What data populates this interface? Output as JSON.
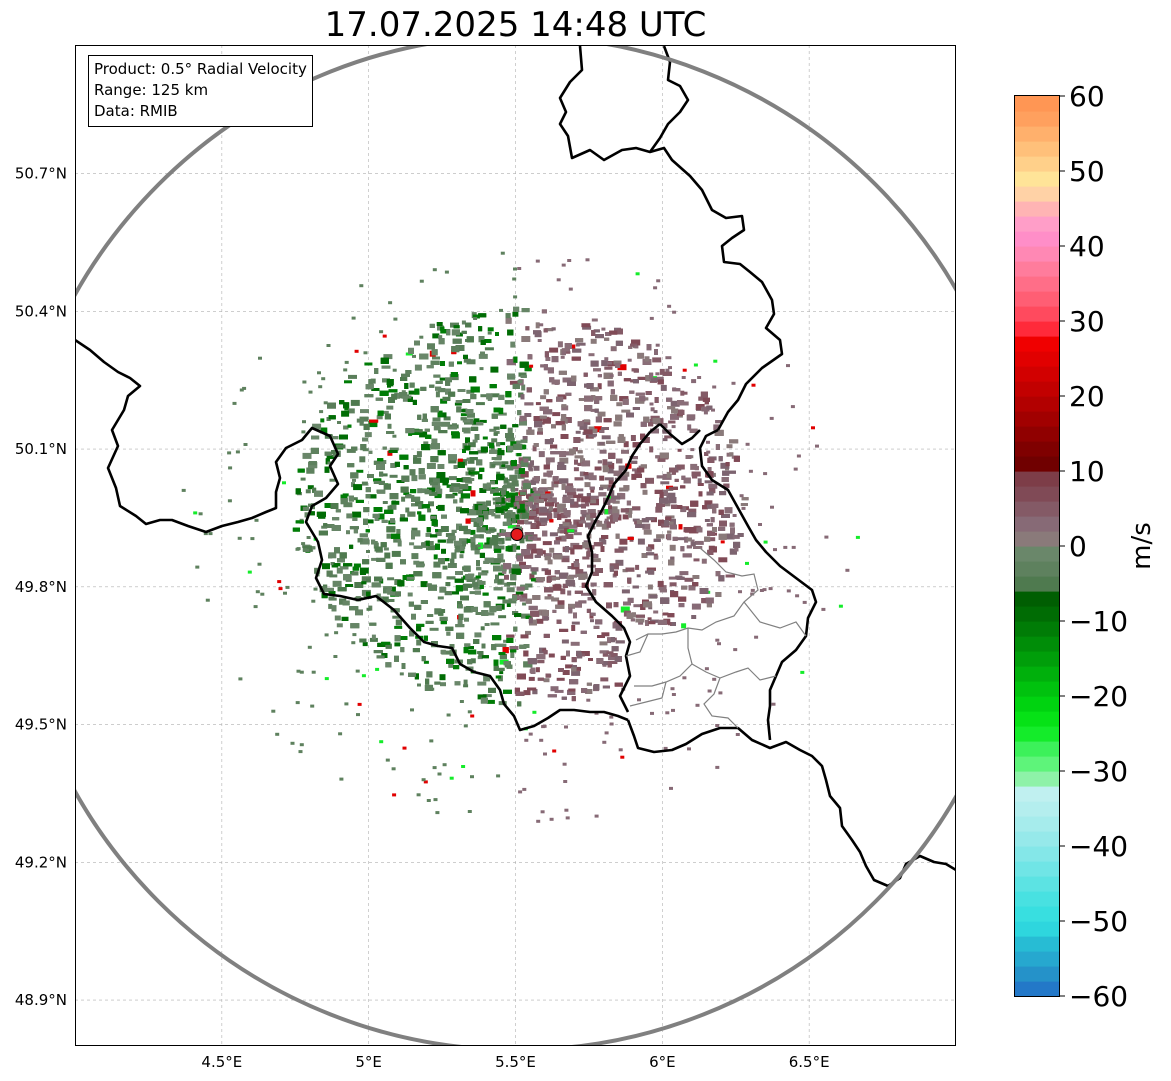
{
  "title": "17.07.2025 14:48 UTC",
  "info": {
    "product": "Product: 0.5° Radial Velocity",
    "range": "Range: 125 km",
    "data": "Data: RMIB"
  },
  "map": {
    "lon_range": [
      4.0,
      7.0
    ],
    "lat_range": [
      48.8,
      50.98
    ],
    "lon_ticks": [
      {
        "value": 4.5,
        "label": "4.5°E"
      },
      {
        "value": 5.0,
        "label": "5°E"
      },
      {
        "value": 5.5,
        "label": "5.5°E"
      },
      {
        "value": 6.0,
        "label": "6°E"
      },
      {
        "value": 6.5,
        "label": "6.5°E"
      }
    ],
    "lat_ticks": [
      {
        "value": 48.9,
        "label": "48.9°N"
      },
      {
        "value": 49.2,
        "label": "49.2°N"
      },
      {
        "value": 49.5,
        "label": "49.5°N"
      },
      {
        "value": 49.8,
        "label": "49.8°N"
      },
      {
        "value": 50.1,
        "label": "50.1°N"
      },
      {
        "value": 50.4,
        "label": "50.4°N"
      },
      {
        "value": 50.7,
        "label": "50.7°N"
      }
    ],
    "gridlines": true,
    "radar_site": {
      "lon": 5.505,
      "lat": 49.914,
      "color": "#e31a1c"
    },
    "range_ring_color": "#808080"
  },
  "colorbar": {
    "label": "m/s",
    "min": -60,
    "max": 60,
    "ticks": [
      {
        "value": 60,
        "label": "60"
      },
      {
        "value": 50,
        "label": "50"
      },
      {
        "value": 40,
        "label": "40"
      },
      {
        "value": 30,
        "label": "30"
      },
      {
        "value": 20,
        "label": "20"
      },
      {
        "value": 10,
        "label": "10"
      },
      {
        "value": 0,
        "label": "0"
      },
      {
        "value": -10,
        "label": "−10"
      },
      {
        "value": -20,
        "label": "−20"
      },
      {
        "value": -30,
        "label": "−30"
      },
      {
        "value": -40,
        "label": "−40"
      },
      {
        "value": -50,
        "label": "−50"
      },
      {
        "value": -60,
        "label": "−60"
      }
    ],
    "stops": [
      {
        "from": -60,
        "to": -58,
        "color": "#2378c8"
      },
      {
        "from": -58,
        "to": -56,
        "color": "#2592c9"
      },
      {
        "from": -56,
        "to": -54,
        "color": "#26a8cf"
      },
      {
        "from": -54,
        "to": -52,
        "color": "#27bcd4"
      },
      {
        "from": -52,
        "to": -50,
        "color": "#2ed6de"
      },
      {
        "from": -50,
        "to": -48,
        "color": "#38dfe0"
      },
      {
        "from": -48,
        "to": -46,
        "color": "#48e1e1"
      },
      {
        "from": -46,
        "to": -44,
        "color": "#5ce3e3"
      },
      {
        "from": -44,
        "to": -42,
        "color": "#70e5e6"
      },
      {
        "from": -42,
        "to": -40,
        "color": "#84e7e8"
      },
      {
        "from": -40,
        "to": -38,
        "color": "#96e9ea"
      },
      {
        "from": -38,
        "to": -36,
        "color": "#a6ecec"
      },
      {
        "from": -36,
        "to": -34,
        "color": "#b4eeee"
      },
      {
        "from": -34,
        "to": -32,
        "color": "#c0f0f0"
      },
      {
        "from": -32,
        "to": -30,
        "color": "#8ef2a8"
      },
      {
        "from": -30,
        "to": -28,
        "color": "#5ef47a"
      },
      {
        "from": -28,
        "to": -26,
        "color": "#3cf15a"
      },
      {
        "from": -26,
        "to": -24,
        "color": "#14ec2a"
      },
      {
        "from": -24,
        "to": -22,
        "color": "#06e216"
      },
      {
        "from": -22,
        "to": -20,
        "color": "#00d310"
      },
      {
        "from": -20,
        "to": -18,
        "color": "#00c20e"
      },
      {
        "from": -18,
        "to": -16,
        "color": "#00b00c"
      },
      {
        "from": -16,
        "to": -14,
        "color": "#009e0a"
      },
      {
        "from": -14,
        "to": -12,
        "color": "#008d08"
      },
      {
        "from": -12,
        "to": -10,
        "color": "#007c06"
      },
      {
        "from": -10,
        "to": -8,
        "color": "#006c04"
      },
      {
        "from": -8,
        "to": -6,
        "color": "#005e02"
      },
      {
        "from": -6,
        "to": -4,
        "color": "#4f7a4f"
      },
      {
        "from": -4,
        "to": -2,
        "color": "#5e815e"
      },
      {
        "from": -2,
        "to": 0,
        "color": "#6a876a"
      },
      {
        "from": 0,
        "to": 2,
        "color": "#8a7a7a"
      },
      {
        "from": 2,
        "to": 4,
        "color": "#876a76"
      },
      {
        "from": 4,
        "to": 6,
        "color": "#845a66"
      },
      {
        "from": 6,
        "to": 8,
        "color": "#804a56"
      },
      {
        "from": 8,
        "to": 10,
        "color": "#7d3d48"
      },
      {
        "from": 10,
        "to": 12,
        "color": "#700000"
      },
      {
        "from": 12,
        "to": 14,
        "color": "#7f0000"
      },
      {
        "from": 14,
        "to": 16,
        "color": "#900000"
      },
      {
        "from": 16,
        "to": 18,
        "color": "#a10000"
      },
      {
        "from": 18,
        "to": 20,
        "color": "#b20000"
      },
      {
        "from": 20,
        "to": 22,
        "color": "#c20000"
      },
      {
        "from": 22,
        "to": 24,
        "color": "#d20000"
      },
      {
        "from": 24,
        "to": 26,
        "color": "#e10000"
      },
      {
        "from": 26,
        "to": 28,
        "color": "#f00000"
      },
      {
        "from": 28,
        "to": 30,
        "color": "#ff2a3a"
      },
      {
        "from": 30,
        "to": 32,
        "color": "#ff4a5e"
      },
      {
        "from": 32,
        "to": 34,
        "color": "#ff5e74"
      },
      {
        "from": 34,
        "to": 36,
        "color": "#ff6e88"
      },
      {
        "from": 36,
        "to": 38,
        "color": "#ff7c9c"
      },
      {
        "from": 38,
        "to": 40,
        "color": "#ff88b4"
      },
      {
        "from": 40,
        "to": 42,
        "color": "#ff8ec8"
      },
      {
        "from": 42,
        "to": 44,
        "color": "#ff9ec8"
      },
      {
        "from": 44,
        "to": 46,
        "color": "#ffb4b4"
      },
      {
        "from": 46,
        "to": 48,
        "color": "#ffd2a6"
      },
      {
        "from": 48,
        "to": 50,
        "color": "#ffe498"
      },
      {
        "from": 50,
        "to": 52,
        "color": "#ffd08a"
      },
      {
        "from": 52,
        "to": 54,
        "color": "#ffc07a"
      },
      {
        "from": 54,
        "to": 56,
        "color": "#ffb06c"
      },
      {
        "from": 56,
        "to": 58,
        "color": "#ffa05e"
      },
      {
        "from": 58,
        "to": 60,
        "color": "#ff9654"
      }
    ]
  }
}
